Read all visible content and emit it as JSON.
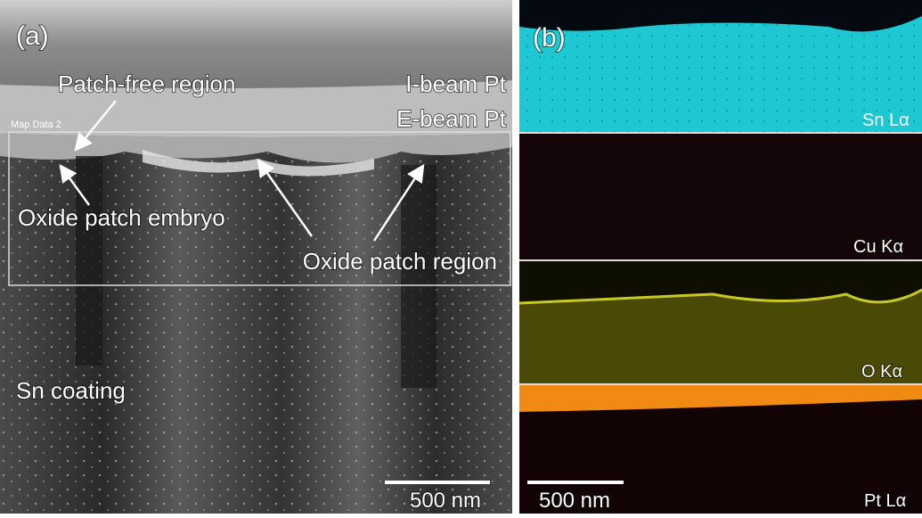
{
  "panels": {
    "a": {
      "tag": "(a)",
      "labels": {
        "patch_free": "Patch-free region",
        "i_beam": "I-beam Pt",
        "e_beam": "E-beam Pt",
        "map_data": "Map Data 2",
        "embryo": "Oxide patch embryo",
        "patch_region": "Oxide patch region",
        "sn_coating": "Sn coating"
      },
      "scale_bar": "500 nm"
    },
    "b": {
      "tag": "(b)",
      "maps": [
        "Sn Lα",
        "Cu Kα",
        "O Kα",
        "Pt Lα"
      ],
      "scale_bar": "500 nm"
    }
  }
}
